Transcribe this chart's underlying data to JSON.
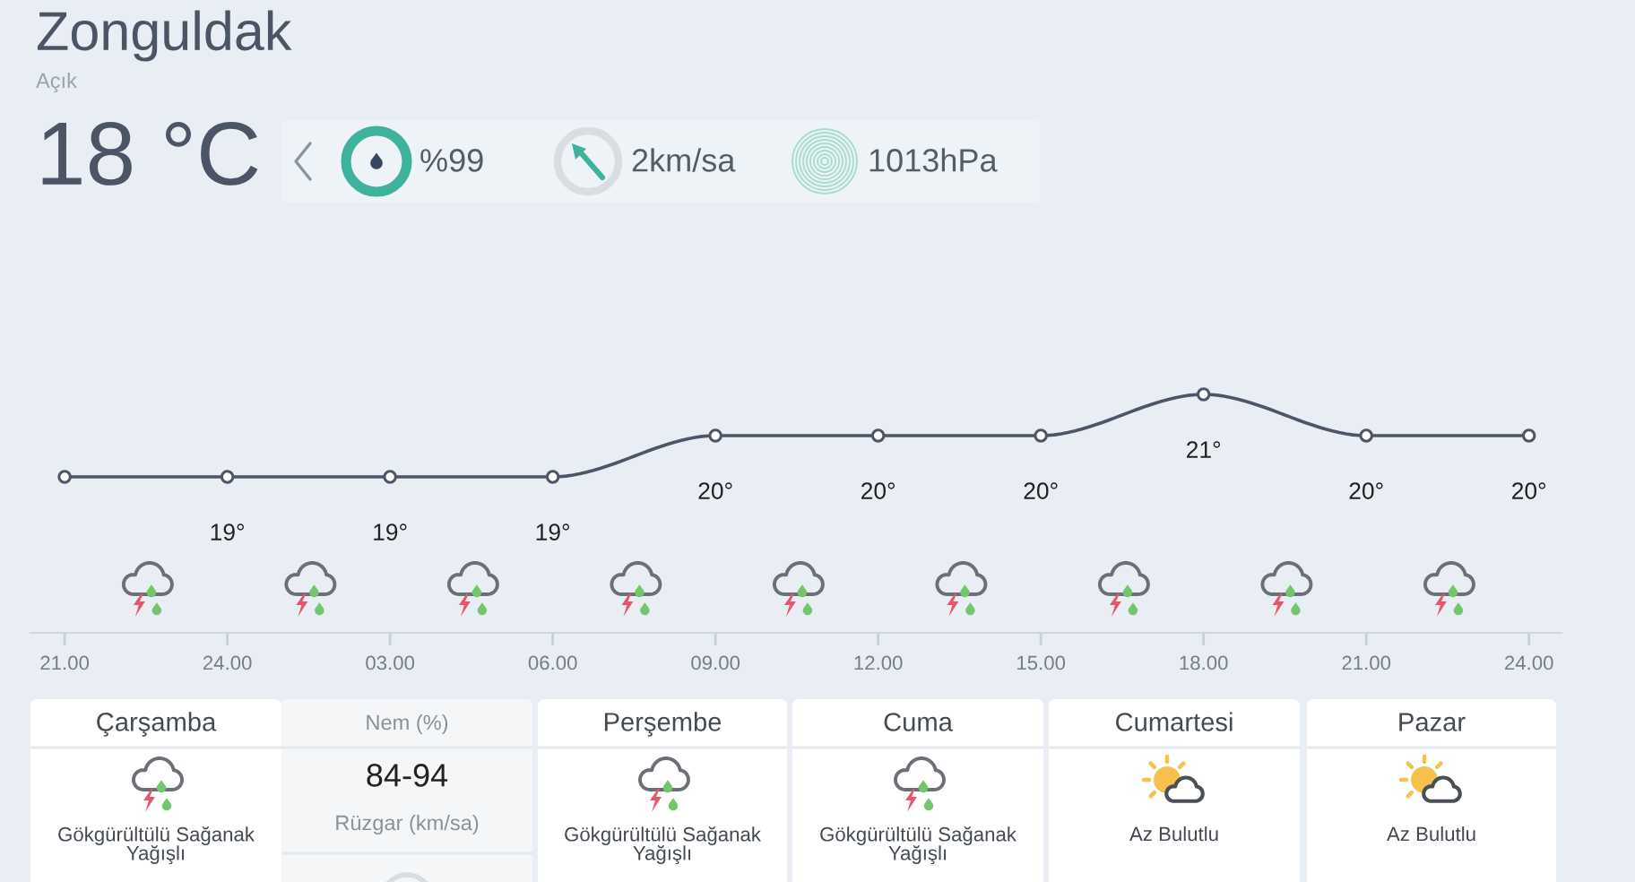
{
  "chart_data": [
    {
      "type": "other",
      "title": "Zonguldak",
      "subtitle": "Açık",
      "annotations": [
        "18 °C",
        "%99",
        "2km/sa",
        "1013hPa"
      ]
    },
    {
      "type": "line",
      "categories": [
        "21.00",
        "24.00",
        "03.00",
        "06.00",
        "09.00",
        "12.00",
        "15.00",
        "18.00",
        "21.00",
        "24.00"
      ],
      "series": [
        {
          "color": "#4d5566",
          "values": [
            19,
            19,
            19,
            19,
            20,
            20,
            20,
            21,
            20,
            20
          ],
          "value_labels": [
            null,
            "19°",
            "19°",
            "19°",
            "20°",
            "20°",
            "20°",
            "21°",
            "20°",
            "20°"
          ]
        }
      ],
      "marker": "circle",
      "line_style": "solid",
      "tick_labels": "x"
    },
    {
      "type": "other",
      "title": "Çarşamba",
      "annotations": [
        "Gökgürültülü Sağanak Yağışlı"
      ]
    },
    {
      "type": "other",
      "annotations": [
        "Nem (%)",
        "84-94",
        "Rüzgar (km/sa)"
      ]
    },
    {
      "type": "other",
      "title": "Perşembe",
      "annotations": [
        "Gökgürültülü Sağanak Yağışlı"
      ]
    },
    {
      "type": "other",
      "title": "Cuma",
      "annotations": [
        "Gökgürültülü Sağanak Yağışlı"
      ]
    },
    {
      "type": "other",
      "title": "Cumartesi",
      "annotations": [
        "Az Bulutlu"
      ]
    },
    {
      "type": "other",
      "title": "Pazar",
      "annotations": [
        "Az Bulutlu"
      ]
    }
  ]
}
